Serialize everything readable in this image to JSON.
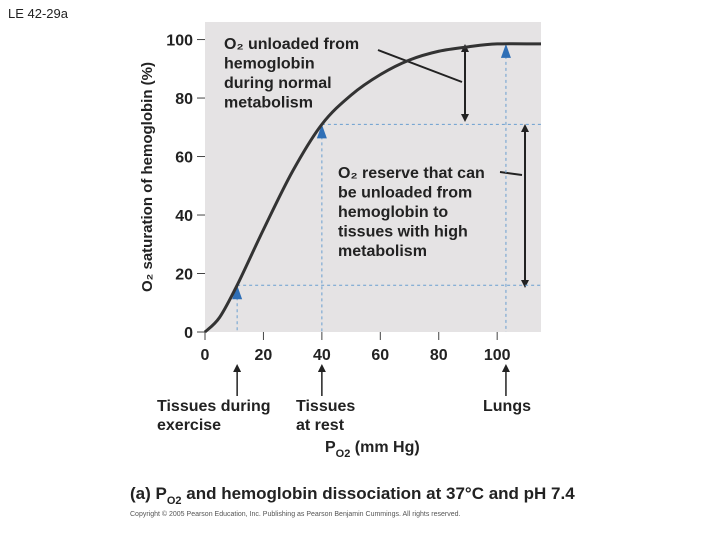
{
  "header": "LE 42-29a",
  "chart_data": {
    "type": "line",
    "ylabel": "O₂ saturation of hemoglobin (%)",
    "xlabel_parts": [
      "P",
      "O2",
      " (mm Hg)"
    ],
    "x": [
      0,
      5,
      11,
      20,
      30,
      40,
      50,
      60,
      70,
      80,
      90,
      100,
      115
    ],
    "series": [
      {
        "color": "#333333",
        "values": [
          0,
          5,
          16,
          35,
          55,
          71,
          81,
          88,
          93,
          96,
          97.5,
          98.5,
          98.5
        ]
      }
    ],
    "xlim": [
      0,
      115
    ],
    "xticks": [
      0,
      20,
      40,
      60,
      80,
      100
    ],
    "ylim": [
      0,
      106
    ],
    "yticks": [
      0,
      20,
      40,
      60,
      80,
      100
    ],
    "points": [
      {
        "x": 11,
        "y": 16,
        "label": [
          "Tissues during",
          "exercise"
        ]
      },
      {
        "x": 40,
        "y": 71,
        "label": [
          "Tissues",
          "at rest"
        ]
      },
      {
        "x": 103,
        "y": 98.5,
        "label": [
          "Lungs"
        ]
      }
    ],
    "annotations": [
      [
        "O₂ unloaded from",
        "hemoglobin",
        "during normal",
        "metabolism"
      ],
      [
        "O₂ reserve that can",
        "be unloaded from",
        "hemoglobin to",
        "tissues with high",
        "metabolism"
      ]
    ]
  },
  "caption_parts": [
    "(a) P",
    "O2",
    " and hemoglobin dissociation at 37°C and pH 7.4"
  ],
  "copyright": "Copyright © 2005 Pearson Education, Inc. Publishing as Pearson Benjamin Cummings. All rights reserved."
}
